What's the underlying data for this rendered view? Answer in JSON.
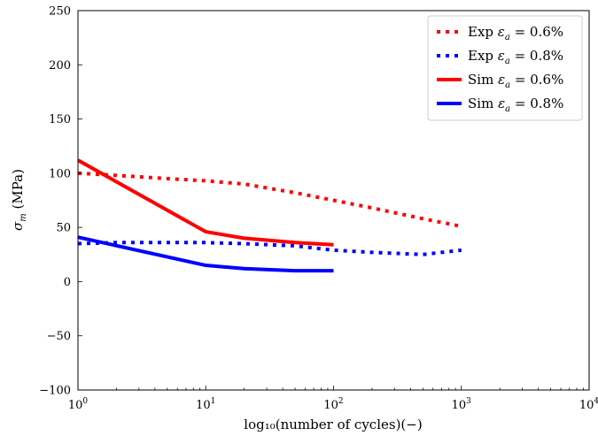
{
  "chart_data": {
    "type": "line",
    "xscale": "log",
    "xlim": [
      1,
      10000
    ],
    "ylim": [
      -100,
      250
    ],
    "xlabel": "log₁₀(number of cycles)(−)",
    "ylabel": "σ_m (MPa)",
    "ylabel_main": "σ",
    "ylabel_sub": "m",
    "ylabel_rest": " (MPa)",
    "x_ticks": [
      {
        "value": 1,
        "label": "10",
        "exp": "0"
      },
      {
        "value": 10,
        "label": "10",
        "exp": "1"
      },
      {
        "value": 100,
        "label": "10",
        "exp": "2"
      },
      {
        "value": 1000,
        "label": "10",
        "exp": "3"
      },
      {
        "value": 10000,
        "label": "10",
        "exp": "4"
      }
    ],
    "y_ticks": [
      {
        "value": -100,
        "label": "−100"
      },
      {
        "value": -50,
        "label": "−50"
      },
      {
        "value": 0,
        "label": "0"
      },
      {
        "value": 50,
        "label": "50"
      },
      {
        "value": 100,
        "label": "100"
      },
      {
        "value": 150,
        "label": "150"
      },
      {
        "value": 200,
        "label": "200"
      },
      {
        "value": 250,
        "label": "250"
      }
    ],
    "legend_position": "top-right",
    "series": [
      {
        "name": "Exp ε_a = 0.6%",
        "legend_prefix": "Exp ",
        "legend_suffix": " = 0.6%",
        "color": "#ff0000",
        "style": "dotted",
        "x": [
          1,
          2,
          5,
          10,
          20,
          50,
          100,
          200,
          500,
          1000
        ],
        "y": [
          100,
          98,
          95,
          93,
          90,
          82,
          75,
          68,
          58,
          51
        ]
      },
      {
        "name": "Exp ε_a = 0.8%",
        "legend_prefix": "Exp ",
        "legend_suffix": " = 0.8%",
        "color": "#0000ff",
        "style": "dotted",
        "x": [
          1,
          2,
          5,
          10,
          20,
          50,
          100,
          200,
          500,
          1000
        ],
        "y": [
          35,
          36,
          36,
          36,
          35,
          33,
          29,
          27,
          25,
          29
        ]
      },
      {
        "name": "Sim ε_a = 0.6%",
        "legend_prefix": "Sim ",
        "legend_suffix": " = 0.6%",
        "color": "#ff0000",
        "style": "solid",
        "x": [
          1,
          10,
          20,
          50,
          100
        ],
        "y": [
          112,
          46,
          40,
          36,
          34
        ]
      },
      {
        "name": "Sim ε_a = 0.8%",
        "legend_prefix": "Sim ",
        "legend_suffix": " = 0.8%",
        "color": "#0000ff",
        "style": "solid",
        "x": [
          1,
          10,
          20,
          50,
          100
        ],
        "y": [
          41,
          15,
          12,
          10,
          10
        ]
      }
    ]
  }
}
